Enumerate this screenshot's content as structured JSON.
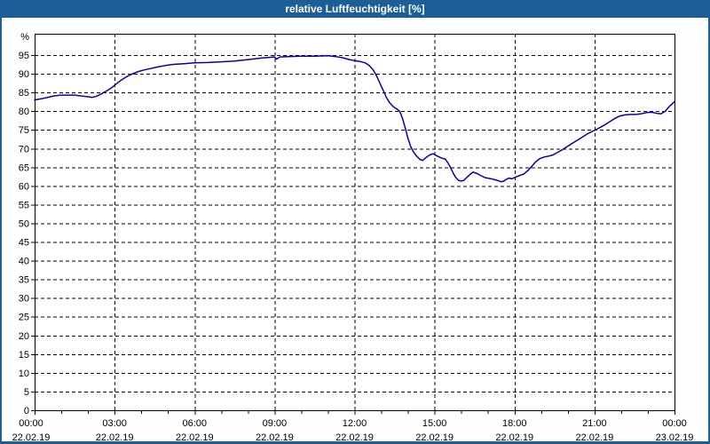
{
  "window": {
    "title": "relative Luftfeuchtigkeit [%]",
    "title_bar_color": "#1b5f96",
    "frame_color": "#1b5f96",
    "background_color": "#fdfefd"
  },
  "chart_data": {
    "type": "line",
    "title": "relative Luftfeuchtigkeit [%]",
    "ylabel": "%",
    "y_axis_top_label": "%",
    "ylim": [
      0,
      100
    ],
    "y_ticks": [
      0,
      5,
      10,
      15,
      20,
      25,
      30,
      35,
      40,
      45,
      50,
      55,
      60,
      65,
      70,
      75,
      80,
      85,
      90,
      95
    ],
    "x_minor_tick_hours": 1,
    "grid": "dashed",
    "legend": "none",
    "plot_background": "#ffffff",
    "grid_color": "#000000",
    "axis_color": "#000000",
    "line_color": "#0000b8",
    "x_ticks": [
      {
        "hour": 0,
        "time": "00:00",
        "date": "22.02.19"
      },
      {
        "hour": 3,
        "time": "03:00",
        "date": "22.02.19"
      },
      {
        "hour": 6,
        "time": "06:00",
        "date": "22.02.19"
      },
      {
        "hour": 9,
        "time": "09:00",
        "date": "22.02.19"
      },
      {
        "hour": 12,
        "time": "12:00",
        "date": "22.02.19"
      },
      {
        "hour": 15,
        "time": "15:00",
        "date": "22.02.19"
      },
      {
        "hour": 18,
        "time": "18:00",
        "date": "22.02.19"
      },
      {
        "hour": 21,
        "time": "21:00",
        "date": "22.02.19"
      },
      {
        "hour": 24,
        "time": "00:00",
        "date": "23.02.19"
      }
    ],
    "series": [
      {
        "name": "relative Luftfeuchtigkeit",
        "unit": "%",
        "points": [
          [
            0,
            83
          ],
          [
            0.25,
            83.3
          ],
          [
            0.5,
            83.7
          ],
          [
            0.75,
            84.1
          ],
          [
            1,
            84.3
          ],
          [
            1.25,
            84.3
          ],
          [
            1.5,
            84.3
          ],
          [
            1.7,
            84.1
          ],
          [
            1.95,
            83.9
          ],
          [
            2.15,
            83.7
          ],
          [
            2.3,
            83.9
          ],
          [
            2.5,
            84.6
          ],
          [
            2.7,
            85.4
          ],
          [
            2.9,
            86.3
          ],
          [
            3.05,
            87.2
          ],
          [
            3.25,
            88.3
          ],
          [
            3.45,
            89.2
          ],
          [
            3.65,
            89.9
          ],
          [
            3.85,
            90.5
          ],
          [
            4.1,
            91
          ],
          [
            4.35,
            91.4
          ],
          [
            4.6,
            91.8
          ],
          [
            4.9,
            92.2
          ],
          [
            5.2,
            92.5
          ],
          [
            5.6,
            92.7
          ],
          [
            6,
            92.9
          ],
          [
            6.5,
            93
          ],
          [
            7,
            93.2
          ],
          [
            7.5,
            93.4
          ],
          [
            8,
            93.8
          ],
          [
            8.5,
            94.2
          ],
          [
            9,
            94.5
          ],
          [
            9.07,
            93.9
          ],
          [
            9.2,
            94.5
          ],
          [
            9.5,
            94.6
          ],
          [
            10,
            94.7
          ],
          [
            10.5,
            94.7
          ],
          [
            11,
            94.8
          ],
          [
            11.3,
            94.6
          ],
          [
            11.6,
            94.2
          ],
          [
            11.8,
            93.8
          ],
          [
            12,
            93.5
          ],
          [
            12.2,
            93.3
          ],
          [
            12.4,
            92.9
          ],
          [
            12.55,
            92.2
          ],
          [
            12.7,
            91
          ],
          [
            12.8,
            89.8
          ],
          [
            12.9,
            88.3
          ],
          [
            13,
            86.7
          ],
          [
            13.1,
            85.2
          ],
          [
            13.2,
            83.6
          ],
          [
            13.3,
            82.4
          ],
          [
            13.45,
            81.2
          ],
          [
            13.6,
            80.5
          ],
          [
            13.7,
            79.9
          ],
          [
            13.8,
            78
          ],
          [
            13.9,
            75.5
          ],
          [
            14,
            72.8
          ],
          [
            14.1,
            70.6
          ],
          [
            14.2,
            69.2
          ],
          [
            14.3,
            68.2
          ],
          [
            14.45,
            67.1
          ],
          [
            14.55,
            66.8
          ],
          [
            14.7,
            67.7
          ],
          [
            14.85,
            68.4
          ],
          [
            14.95,
            68.6
          ],
          [
            15.1,
            68
          ],
          [
            15.25,
            67.5
          ],
          [
            15.4,
            67.2
          ],
          [
            15.5,
            66.2
          ],
          [
            15.6,
            64.9
          ],
          [
            15.7,
            63.4
          ],
          [
            15.8,
            62.2
          ],
          [
            15.9,
            61.5
          ],
          [
            16,
            61.3
          ],
          [
            16.1,
            61.5
          ],
          [
            16.2,
            62.2
          ],
          [
            16.35,
            63.2
          ],
          [
            16.45,
            63.7
          ],
          [
            16.6,
            63.3
          ],
          [
            16.75,
            62.7
          ],
          [
            16.9,
            62.2
          ],
          [
            17.05,
            62
          ],
          [
            17.2,
            61.8
          ],
          [
            17.35,
            61.5
          ],
          [
            17.5,
            61.1
          ],
          [
            17.6,
            61.3
          ],
          [
            17.7,
            61.8
          ],
          [
            17.8,
            62.1
          ],
          [
            17.9,
            61.9
          ],
          [
            18.05,
            62.4
          ],
          [
            18.2,
            62.8
          ],
          [
            18.35,
            63.2
          ],
          [
            18.5,
            64.1
          ],
          [
            18.65,
            65.3
          ],
          [
            18.8,
            66.5
          ],
          [
            18.95,
            67.3
          ],
          [
            19.1,
            67.7
          ],
          [
            19.3,
            68
          ],
          [
            19.45,
            68.3
          ],
          [
            19.6,
            68.9
          ],
          [
            19.75,
            69.5
          ],
          [
            19.95,
            70.4
          ],
          [
            20.15,
            71.3
          ],
          [
            20.35,
            72.2
          ],
          [
            20.55,
            73.1
          ],
          [
            20.75,
            74
          ],
          [
            20.95,
            74.7
          ],
          [
            21.15,
            75.4
          ],
          [
            21.35,
            76.2
          ],
          [
            21.55,
            77.1
          ],
          [
            21.75,
            78
          ],
          [
            21.95,
            78.7
          ],
          [
            22.15,
            79
          ],
          [
            22.35,
            79.1
          ],
          [
            22.55,
            79.1
          ],
          [
            22.75,
            79.3
          ],
          [
            22.95,
            79.6
          ],
          [
            23.15,
            79.7
          ],
          [
            23.35,
            79.4
          ],
          [
            23.5,
            79.3
          ],
          [
            23.65,
            80
          ],
          [
            23.8,
            81.2
          ],
          [
            24,
            82.5
          ]
        ]
      }
    ]
  }
}
